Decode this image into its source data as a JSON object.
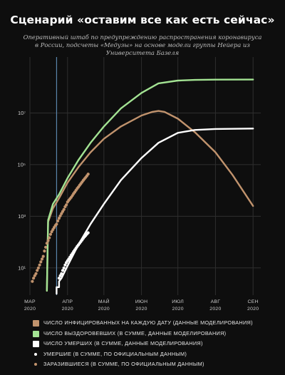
{
  "title": "Сценарий «оставим все как есть сейчас»",
  "subtitle": "Оперативный штаб по предупреждению распространения коронавируса в России, подсчеты «Медузы» на основе модели группы Нейера из Университета Базеля",
  "colors": {
    "infected_daily": "#c1936d",
    "recovered_total": "#a3e393",
    "deaths_total": "#ffffff",
    "deaths_official": "#ffffff",
    "infected_official": "#c1936d",
    "marker_line": "#5a86ad",
    "grid": "#2e2e2e",
    "background": "#0e0e0e"
  },
  "chart_data": {
    "type": "line",
    "yscale": "log",
    "ylim": [
      1,
      1000000000
    ],
    "y_ticks": [
      {
        "value": 10,
        "label": "10¹"
      },
      {
        "value": 1000,
        "label": "10³"
      },
      {
        "value": 100000,
        "label": "10⁵"
      },
      {
        "value": 10000000,
        "label": "10⁷"
      }
    ],
    "x_ticks": [
      {
        "month": "МАР",
        "year": "2020",
        "date": "2020-03-01"
      },
      {
        "month": "АПР",
        "year": "2020",
        "date": "2020-04-01"
      },
      {
        "month": "МАЙ",
        "year": "2020",
        "date": "2020-05-01"
      },
      {
        "month": "ИЮН",
        "year": "2020",
        "date": "2020-06-01"
      },
      {
        "month": "ИЮЛ",
        "year": "2020",
        "date": "2020-07-01"
      },
      {
        "month": "АВГ",
        "year": "2020",
        "date": "2020-08-01"
      },
      {
        "month": "СЕН",
        "year": "2020",
        "date": "2020-09-01"
      }
    ],
    "xlim": [
      "2020-03-01",
      "2020-09-05"
    ],
    "vertical_marker": "2020-03-23",
    "series": [
      {
        "name": "ЧИСЛО ИНФИЦИРОВАННЫХ НА КАЖДУЮ ДАТУ (ДАННЫЕ МОДЕЛИРОВАНИЯ)",
        "kind": "line",
        "color_key": "infected_daily",
        "points": [
          [
            "2020-03-15",
            1.3
          ],
          [
            "2020-03-16",
            600
          ],
          [
            "2020-03-20",
            2000
          ],
          [
            "2020-03-25",
            5000
          ],
          [
            "2020-04-01",
            20000
          ],
          [
            "2020-04-10",
            80000
          ],
          [
            "2020-04-20",
            300000
          ],
          [
            "2020-05-01",
            1000000
          ],
          [
            "2020-05-15",
            3000000
          ],
          [
            "2020-06-01",
            8000000
          ],
          [
            "2020-06-10",
            11000000
          ],
          [
            "2020-06-15",
            12000000
          ],
          [
            "2020-06-20",
            11000000
          ],
          [
            "2020-07-01",
            6000000
          ],
          [
            "2020-07-15",
            1800000
          ],
          [
            "2020-08-01",
            300000
          ],
          [
            "2020-08-15",
            40000
          ],
          [
            "2020-09-01",
            2500
          ]
        ]
      },
      {
        "name": "ЧИСЛО ВЫЗДОРОВЕВШИХ (В СУММЕ, ДАННЫЕ МОДЕЛИРОВАНИЯ)",
        "kind": "line",
        "color_key": "recovered_total",
        "points": [
          [
            "2020-03-15",
            1.3
          ],
          [
            "2020-03-16",
            700
          ],
          [
            "2020-03-20",
            3000
          ],
          [
            "2020-03-25",
            7000
          ],
          [
            "2020-04-01",
            30000
          ],
          [
            "2020-04-10",
            150000
          ],
          [
            "2020-04-20",
            700000
          ],
          [
            "2020-05-01",
            3000000
          ],
          [
            "2020-05-15",
            15000000
          ],
          [
            "2020-06-01",
            60000000
          ],
          [
            "2020-06-15",
            140000000
          ],
          [
            "2020-07-01",
            180000000
          ],
          [
            "2020-07-15",
            190000000
          ],
          [
            "2020-08-01",
            195000000
          ],
          [
            "2020-09-01",
            196000000
          ]
        ]
      },
      {
        "name": "ЧИСЛО УМЕРШИХ (В СУММЕ, ДАННЫЕ МОДЕЛИРОВАНИЯ)",
        "kind": "line",
        "color_key": "deaths_total",
        "points": [
          [
            "2020-03-23",
            1
          ],
          [
            "2020-03-23",
            1.8
          ],
          [
            "2020-03-25",
            1.8
          ],
          [
            "2020-03-25",
            3
          ],
          [
            "2020-03-27",
            4
          ],
          [
            "2020-04-01",
            12
          ],
          [
            "2020-04-10",
            80
          ],
          [
            "2020-04-20",
            500
          ],
          [
            "2020-05-01",
            3000
          ],
          [
            "2020-05-15",
            25000
          ],
          [
            "2020-06-01",
            180000
          ],
          [
            "2020-06-15",
            700000
          ],
          [
            "2020-07-01",
            1700000
          ],
          [
            "2020-07-15",
            2200000
          ],
          [
            "2020-08-01",
            2400000
          ],
          [
            "2020-09-01",
            2500000
          ]
        ]
      },
      {
        "name": "УМЕРШИЕ (В СУММЕ, ПО ОФИЦИАЛЬНЫМ ДАННЫМ)",
        "kind": "dots",
        "color_key": "deaths_official",
        "points": [
          [
            "2020-03-25",
            4
          ],
          [
            "2020-03-26",
            5
          ],
          [
            "2020-03-27",
            6
          ],
          [
            "2020-03-28",
            8
          ],
          [
            "2020-03-29",
            10
          ],
          [
            "2020-03-30",
            13
          ],
          [
            "2020-03-31",
            16
          ],
          [
            "2020-04-01",
            19
          ],
          [
            "2020-04-02",
            22
          ],
          [
            "2020-04-03",
            26
          ],
          [
            "2020-04-04",
            31
          ],
          [
            "2020-04-05",
            36
          ],
          [
            "2020-04-06",
            43
          ],
          [
            "2020-04-07",
            50
          ],
          [
            "2020-04-08",
            58
          ],
          [
            "2020-04-09",
            68
          ],
          [
            "2020-04-10",
            78
          ],
          [
            "2020-04-11",
            90
          ],
          [
            "2020-04-12",
            104
          ],
          [
            "2020-04-13",
            120
          ],
          [
            "2020-04-14",
            140
          ],
          [
            "2020-04-15",
            160
          ],
          [
            "2020-04-16",
            180
          ],
          [
            "2020-04-17",
            205
          ],
          [
            "2020-04-18",
            230
          ]
        ]
      },
      {
        "name": "ЗАРАЗИВШИЕСЯ (В СУММЕ, ПО ОФИЦИАЛЬНЫМ ДАННЫМ)",
        "kind": "dots",
        "color_key": "infected_official",
        "points": [
          [
            "2020-03-03",
            3
          ],
          [
            "2020-03-04",
            4
          ],
          [
            "2020-03-05",
            5
          ],
          [
            "2020-03-06",
            6
          ],
          [
            "2020-03-07",
            8
          ],
          [
            "2020-03-08",
            10
          ],
          [
            "2020-03-09",
            13
          ],
          [
            "2020-03-10",
            17
          ],
          [
            "2020-03-11",
            22
          ],
          [
            "2020-03-12",
            28
          ],
          [
            "2020-03-13",
            45
          ],
          [
            "2020-03-14",
            63
          ],
          [
            "2020-03-15",
            90
          ],
          [
            "2020-03-16",
            114
          ],
          [
            "2020-03-17",
            147
          ],
          [
            "2020-03-18",
            199
          ],
          [
            "2020-03-19",
            253
          ],
          [
            "2020-03-20",
            306
          ],
          [
            "2020-03-21",
            367
          ],
          [
            "2020-03-22",
            438
          ],
          [
            "2020-03-23",
            495
          ],
          [
            "2020-03-24",
            658
          ],
          [
            "2020-03-25",
            840
          ],
          [
            "2020-03-26",
            1036
          ],
          [
            "2020-03-27",
            1264
          ],
          [
            "2020-03-28",
            1534
          ],
          [
            "2020-03-29",
            1836
          ],
          [
            "2020-03-30",
            2337
          ],
          [
            "2020-03-31",
            2777
          ],
          [
            "2020-04-01",
            3548
          ],
          [
            "2020-04-02",
            4149
          ],
          [
            "2020-04-03",
            4731
          ],
          [
            "2020-04-04",
            5389
          ],
          [
            "2020-04-05",
            6343
          ],
          [
            "2020-04-06",
            7497
          ],
          [
            "2020-04-07",
            8672
          ],
          [
            "2020-04-08",
            10131
          ],
          [
            "2020-04-09",
            11917
          ],
          [
            "2020-04-10",
            13584
          ],
          [
            "2020-04-11",
            15770
          ],
          [
            "2020-04-12",
            18328
          ],
          [
            "2020-04-13",
            21102
          ],
          [
            "2020-04-14",
            24490
          ],
          [
            "2020-04-15",
            27938
          ],
          [
            "2020-04-16",
            32008
          ],
          [
            "2020-04-17",
            36793
          ],
          [
            "2020-04-18",
            42853
          ]
        ]
      }
    ]
  },
  "legend": [
    {
      "label": "ЧИСЛО ИНФИЦИРОВАННЫХ НА КАЖДУЮ ДАТУ (ДАННЫЕ МОДЕЛИРОВАНИЯ)",
      "marker": "square",
      "color_key": "infected_daily"
    },
    {
      "label": "ЧИСЛО ВЫЗДОРОВЕВШИХ (В СУММЕ, ДАННЫЕ МОДЕЛИРОВАНИЯ)",
      "marker": "square",
      "color_key": "recovered_total"
    },
    {
      "label": "ЧИСЛО УМЕРШИХ (В СУММЕ, ДАННЫЕ МОДЕЛИРОВАНИЯ)",
      "marker": "square",
      "color_key": "deaths_total"
    },
    {
      "label": "УМЕРШИЕ (В СУММЕ, ПО ОФИЦИАЛЬНЫМ ДАННЫМ)",
      "marker": "dot",
      "color_key": "deaths_official"
    },
    {
      "label": "ЗАРАЗИВШИЕСЯ (В СУММЕ, ПО ОФИЦИАЛЬНЫМ ДАННЫМ)",
      "marker": "dot",
      "color_key": "infected_official"
    }
  ]
}
